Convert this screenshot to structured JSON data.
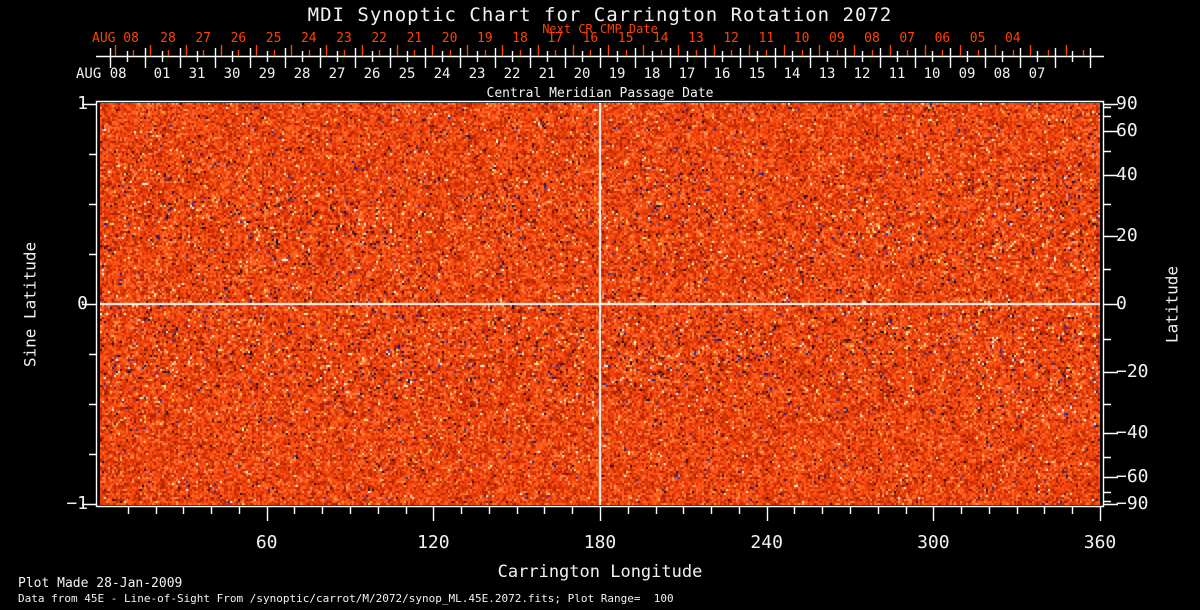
{
  "colors": {
    "accent": "#ff4400",
    "foreground": "#f2f2f2",
    "background": "#000000",
    "crosshair": "#ffffff"
  },
  "chart_data": {
    "type": "heatmap",
    "title": "MDI Synoptic Chart for Carrington Rotation 2072",
    "top_axis_next": {
      "label": "Next CR CMP Date",
      "month": "AUG 08",
      "days": [
        "28",
        "27",
        "26",
        "25",
        "24",
        "23",
        "22",
        "21",
        "20",
        "19",
        "18",
        "17",
        "16",
        "15",
        "14",
        "13",
        "12",
        "11",
        "10",
        "09",
        "08",
        "07",
        "06",
        "05",
        "04"
      ]
    },
    "top_axis_cmp": {
      "label": "Central Meridian Passage Date",
      "month": "AUG 08",
      "days": [
        "01",
        "31",
        "30",
        "29",
        "28",
        "27",
        "26",
        "25",
        "24",
        "23",
        "22",
        "21",
        "20",
        "19",
        "18",
        "17",
        "16",
        "15",
        "14",
        "13",
        "12",
        "11",
        "10",
        "09",
        "08",
        "07"
      ]
    },
    "x_axis": {
      "label": "Carrington Longitude",
      "range": [
        0,
        360
      ],
      "minor_step": 10,
      "ticks": [
        {
          "label": "60",
          "value": 60
        },
        {
          "label": "120",
          "value": 120
        },
        {
          "label": "180",
          "value": 180
        },
        {
          "label": "240",
          "value": 240
        },
        {
          "label": "300",
          "value": 300
        },
        {
          "label": "360",
          "value": 360
        }
      ]
    },
    "y_axis_left": {
      "label": "Sine Latitude",
      "range": [
        -1,
        1
      ],
      "minor_step": 0.25,
      "ticks": [
        {
          "label": "1",
          "value": 1
        },
        {
          "label": "0",
          "value": 0
        },
        {
          "label": "−1",
          "value": -1
        }
      ]
    },
    "y_axis_right": {
      "label": "Latitude",
      "scale": "sine",
      "minor_step_deg": 10,
      "ticks": [
        {
          "label": "90",
          "value": 90
        },
        {
          "label": "60",
          "value": 60
        },
        {
          "label": "40",
          "value": 40
        },
        {
          "label": "20",
          "value": 20
        },
        {
          "label": "0",
          "value": 0
        },
        {
          "label": "−20",
          "value": -20
        },
        {
          "label": "−40",
          "value": -40
        },
        {
          "label": "−60",
          "value": -60
        },
        {
          "label": "−90",
          "value": -90
        }
      ]
    },
    "crosshair": {
      "longitude": 180,
      "sine_latitude": 0
    },
    "map": {
      "description": "line-of-sight magnetogram noise field",
      "palette": [
        {
          "c": "#ff8a45",
          "w": 3
        },
        {
          "c": "#ff6f2e",
          "w": 9
        },
        {
          "c": "#ff5c1a",
          "w": 16
        },
        {
          "c": "#f84b10",
          "w": 20
        },
        {
          "c": "#e83c08",
          "w": 20
        },
        {
          "c": "#d33104",
          "w": 14
        },
        {
          "c": "#bb2602",
          "w": 10
        },
        {
          "c": "#a21d01",
          "w": 5
        },
        {
          "c": "#ffa35e",
          "w": 3
        }
      ],
      "speckles": {
        "dark": [
          "#331000",
          "#120400",
          "#551800"
        ],
        "blue": [
          "#0022aa",
          "#001266",
          "#1133cc"
        ],
        "bright": [
          "#ffd944",
          "#ffe97e",
          "#fff3ad"
        ],
        "white": "#ffffff"
      }
    },
    "footer": {
      "line1": "Plot Made 28-Jan-2009",
      "line2": "Data from 45E - Line-of-Sight From /synoptic/carrot/M/2072/synop_ML.45E.2072.fits; Plot Range=  100"
    }
  }
}
